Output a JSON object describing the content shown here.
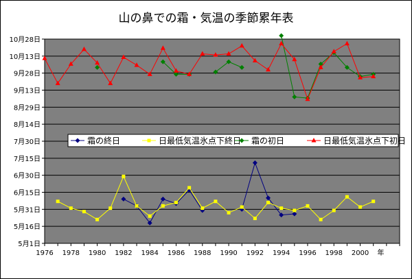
{
  "chart_data": {
    "type": "line",
    "title": "山の鼻での霜・気温の季節累年表",
    "x_unit": "年",
    "xlim": [
      1976,
      2003
    ],
    "x_ticks": [
      1976,
      1978,
      1980,
      1982,
      1984,
      1986,
      1988,
      1990,
      1992,
      1994,
      1996,
      1998,
      2000
    ],
    "x_tick_labels": [
      "1976",
      "1978",
      "1980",
      "1982",
      "1984",
      "1986",
      "1988",
      "1990",
      "1992",
      "1994",
      "1996",
      "1998",
      "2000"
    ],
    "y_ticks": [
      "5月1日",
      "5月16日",
      "5月31日",
      "6月15日",
      "6月30日",
      "7月15日",
      "7月30日",
      "8月14日",
      "8月29日",
      "9月13日",
      "9月28日",
      "10月13日",
      "10月28日"
    ],
    "ylim": [
      "5月1日",
      "10月28日"
    ],
    "grid": "horizontal",
    "plot_background": "#808080",
    "legend_position": "center",
    "series": [
      {
        "name": "霜の終日",
        "color": "#000080",
        "marker": "diamond",
        "points": [
          {
            "x": 1982,
            "y": "6月9日"
          },
          {
            "x": 1983,
            "y": "6月3日"
          },
          {
            "x": 1984,
            "y": "5月19日"
          },
          {
            "x": 1985,
            "y": "6月9日"
          },
          {
            "x": 1986,
            "y": "6月5日"
          },
          {
            "x": 1987,
            "y": "6月17日"
          },
          {
            "x": 1988,
            "y": "5月30日"
          },
          {
            "x": null,
            "y": null
          },
          {
            "x": 1991,
            "y": "5月31日"
          },
          {
            "x": 1992,
            "y": "7月11日"
          },
          {
            "x": 1993,
            "y": "6月10日"
          },
          {
            "x": 1994,
            "y": "5月26日"
          },
          {
            "x": 1995,
            "y": "5月27日"
          }
        ]
      },
      {
        "name": "日最低気温氷点下終日",
        "color": "#ffff00",
        "marker": "square",
        "points": [
          {
            "x": 1977,
            "y": "6月7日"
          },
          {
            "x": 1978,
            "y": "6月1日"
          },
          {
            "x": 1979,
            "y": "5月29日"
          },
          {
            "x": 1980,
            "y": "5月22日"
          },
          {
            "x": 1981,
            "y": "6月1日"
          },
          {
            "x": 1982,
            "y": "6月29日"
          },
          {
            "x": 1983,
            "y": "6月3日"
          },
          {
            "x": 1984,
            "y": "5月25日"
          },
          {
            "x": 1985,
            "y": "6月3日"
          },
          {
            "x": 1986,
            "y": "6月6日"
          },
          {
            "x": 1987,
            "y": "6月19日"
          },
          {
            "x": 1988,
            "y": "6月1日"
          },
          {
            "x": 1989,
            "y": "6月7日"
          },
          {
            "x": 1990,
            "y": "5月28日"
          },
          {
            "x": 1991,
            "y": "6月2日"
          },
          {
            "x": 1992,
            "y": "5月23日"
          },
          {
            "x": 1993,
            "y": "6月6日"
          },
          {
            "x": 1994,
            "y": "6月1日"
          },
          {
            "x": 1995,
            "y": "5月30日"
          },
          {
            "x": 1996,
            "y": "6月3日"
          },
          {
            "x": 1997,
            "y": "5月22日"
          },
          {
            "x": 1998,
            "y": "5月30日"
          },
          {
            "x": 1999,
            "y": "6月11日"
          },
          {
            "x": 2000,
            "y": "6月2日"
          },
          {
            "x": 2001,
            "y": "6月7日"
          }
        ]
      },
      {
        "name": "霜の初日",
        "color": "#008000",
        "marker": "diamond",
        "points": [
          {
            "x": 1980,
            "y": "10月3日"
          },
          {
            "x": null,
            "y": null
          },
          {
            "x": 1985,
            "y": "10月8日"
          },
          {
            "x": 1986,
            "y": "9月27日"
          },
          {
            "x": 1987,
            "y": "9月27日"
          },
          {
            "x": null,
            "y": null
          },
          {
            "x": 1989,
            "y": "9月29日"
          },
          {
            "x": 1990,
            "y": "10月8日"
          },
          {
            "x": 1991,
            "y": "10月3日"
          },
          {
            "x": null,
            "y": null
          },
          {
            "x": 1994,
            "y": "10月31日"
          },
          {
            "x": 1995,
            "y": "9月7日"
          },
          {
            "x": 1996,
            "y": "9月6日"
          },
          {
            "x": 1997,
            "y": "10月6日"
          },
          {
            "x": 1998,
            "y": "10月16日"
          },
          {
            "x": 1999,
            "y": "10月3日"
          },
          {
            "x": 2000,
            "y": "9月25日"
          },
          {
            "x": 2001,
            "y": "9月27日"
          }
        ]
      },
      {
        "name": "日最低気温氷点下初日",
        "color": "#ff0000",
        "marker": "triangle",
        "points": [
          {
            "x": 1976,
            "y": "10月11日"
          },
          {
            "x": 1977,
            "y": "9月19日"
          },
          {
            "x": 1978,
            "y": "10月6日"
          },
          {
            "x": 1979,
            "y": "10月19日"
          },
          {
            "x": 1980,
            "y": "10月7日"
          },
          {
            "x": 1981,
            "y": "9月19日"
          },
          {
            "x": 1982,
            "y": "10月12日"
          },
          {
            "x": 1983,
            "y": "10月5日"
          },
          {
            "x": 1984,
            "y": "9月27日"
          },
          {
            "x": 1985,
            "y": "10月20日"
          },
          {
            "x": 1986,
            "y": "9月30日"
          },
          {
            "x": 1987,
            "y": "9月27日"
          },
          {
            "x": 1988,
            "y": "10月15日"
          },
          {
            "x": 1989,
            "y": "10月14日"
          },
          {
            "x": 1990,
            "y": "10月15日"
          },
          {
            "x": 1991,
            "y": "10月22日"
          },
          {
            "x": 1992,
            "y": "10月9日"
          },
          {
            "x": 1993,
            "y": "10月1日"
          },
          {
            "x": 1994,
            "y": "10月24日"
          },
          {
            "x": 1995,
            "y": "10月10日"
          },
          {
            "x": 1996,
            "y": "9月5日"
          },
          {
            "x": 1997,
            "y": "10月3日"
          },
          {
            "x": 1998,
            "y": "10月17日"
          },
          {
            "x": 1999,
            "y": "10月24日"
          },
          {
            "x": 2000,
            "y": "9月24日"
          },
          {
            "x": 2001,
            "y": "9月25日"
          }
        ]
      }
    ]
  }
}
